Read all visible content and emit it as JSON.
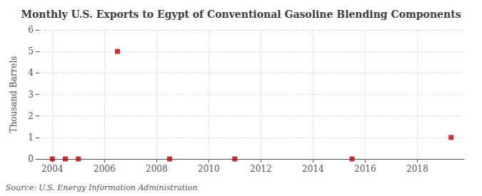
{
  "chart_data": {
    "type": "scatter",
    "title": "Monthly U.S. Exports to Egypt of Conventional Gasoline Blending Components",
    "ylabel": "Thousand Barrels",
    "annotation": "Source: U.S. Energy Information Administration",
    "x": [
      2004.0,
      2004.5,
      2005.0,
      2006.5,
      2008.5,
      2011.0,
      2015.5,
      2019.3
    ],
    "values": [
      0.0,
      0.0,
      0.0,
      5.0,
      0.0,
      0.0,
      0.0,
      1.0
    ],
    "color": "#bb0000",
    "marker": "square",
    "xlim": [
      2003.5,
      2019.8
    ],
    "ylim": [
      0,
      6
    ],
    "xticks": [
      2004,
      2006,
      2008,
      2010,
      2012,
      2014,
      2016,
      2018
    ],
    "yticks": [
      0,
      1,
      2,
      3,
      4,
      5,
      6
    ],
    "grid": true
  }
}
